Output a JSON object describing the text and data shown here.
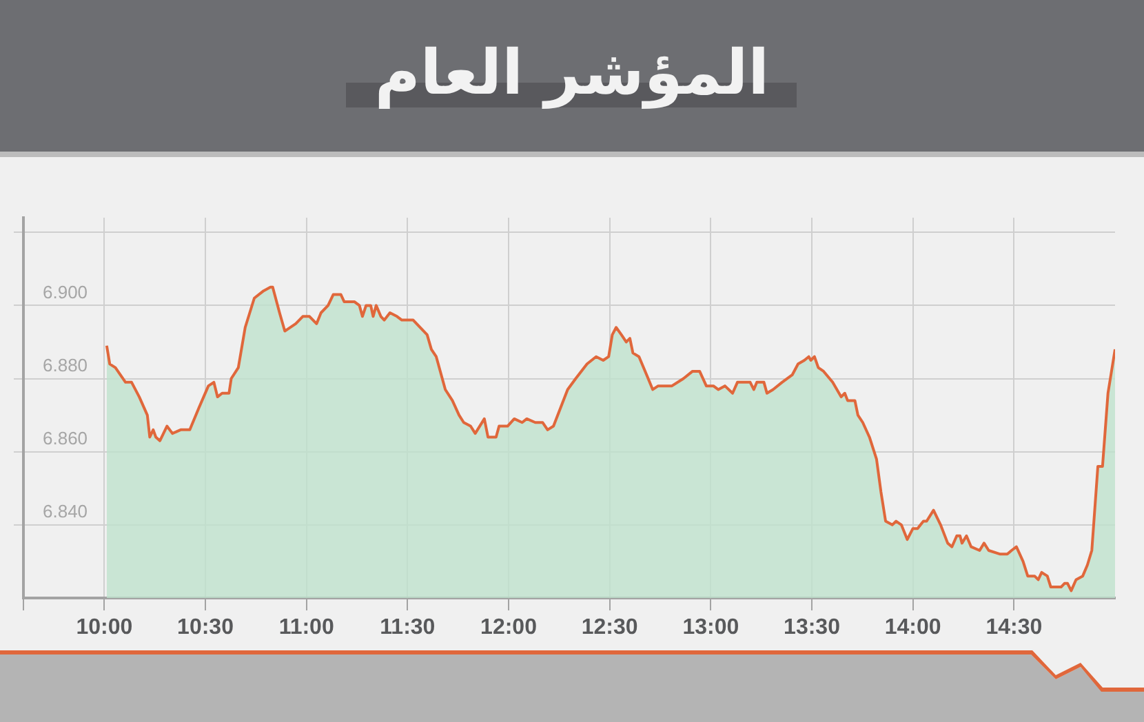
{
  "chart_data": {
    "type": "area",
    "title": "المؤشر العام",
    "xlim": [
      9.6,
      15
    ],
    "xticks": [
      {
        "value": 9.6,
        "label": null
      },
      {
        "value": 10,
        "label": "10:00"
      },
      {
        "value": 10.5,
        "label": "10:30"
      },
      {
        "value": 11,
        "label": "11:00"
      },
      {
        "value": 11.5,
        "label": "11:30"
      },
      {
        "value": 12,
        "label": "12:00"
      },
      {
        "value": 12.5,
        "label": "12:30"
      },
      {
        "value": 13,
        "label": "13:00"
      },
      {
        "value": 13.5,
        "label": "13:30"
      },
      {
        "value": 14,
        "label": "14:00"
      },
      {
        "value": 14.5,
        "label": "14:30"
      }
    ],
    "ylim": [
      6.82,
      6.924
    ],
    "yticks": [
      {
        "value": 6.84,
        "label": "6.840"
      },
      {
        "value": 6.86,
        "label": "6.860"
      },
      {
        "value": 6.88,
        "label": "6.880"
      },
      {
        "value": 6.9,
        "label": "6.900"
      },
      {
        "value": 6.92,
        "label": null
      }
    ],
    "grid": true,
    "legend": false,
    "series": [
      {
        "color": "#e0673b",
        "x": [
          10.012,
          10.027,
          10.055,
          10.105,
          10.135,
          10.173,
          10.213,
          10.225,
          10.242,
          10.255,
          10.275,
          10.31,
          10.337,
          10.378,
          10.423,
          10.468,
          10.515,
          10.542,
          10.56,
          10.583,
          10.617,
          10.628,
          10.663,
          10.697,
          10.742,
          10.788,
          10.822,
          10.833,
          10.867,
          10.893,
          10.947,
          10.982,
          11.015,
          11.05,
          11.072,
          11.107,
          11.133,
          11.17,
          11.187,
          11.238,
          11.262,
          11.277,
          11.295,
          11.318,
          11.33,
          11.345,
          11.368,
          11.385,
          11.413,
          11.448,
          11.472,
          11.528,
          11.562,
          11.597,
          11.618,
          11.642,
          11.687,
          11.722,
          11.755,
          11.778,
          11.812,
          11.835,
          11.88,
          11.898,
          11.938,
          11.953,
          11.995,
          12.028,
          12.067,
          12.09,
          12.132,
          12.168,
          12.193,
          12.222,
          12.257,
          12.292,
          12.332,
          12.388,
          12.433,
          12.468,
          12.495,
          12.513,
          12.532,
          12.558,
          12.582,
          12.6,
          12.615,
          12.645,
          12.683,
          12.713,
          12.74,
          12.808,
          12.865,
          12.91,
          12.945,
          12.978,
          13.013,
          13.037,
          13.07,
          13.108,
          13.132,
          13.195,
          13.213,
          13.228,
          13.263,
          13.278,
          13.308,
          13.353,
          13.403,
          13.432,
          13.463,
          13.485,
          13.495,
          13.513,
          13.532,
          13.558,
          13.603,
          13.645,
          13.663,
          13.677,
          13.713,
          13.728,
          13.752,
          13.785,
          13.82,
          13.842,
          13.865,
          13.898,
          13.917,
          13.943,
          13.972,
          14.0,
          14.023,
          14.052,
          14.068,
          14.102,
          14.137,
          14.172,
          14.193,
          14.217,
          14.233,
          14.243,
          14.265,
          14.288,
          14.33,
          14.352,
          14.375,
          14.432,
          14.467,
          14.488,
          14.512,
          14.545,
          14.568,
          14.602,
          14.62,
          14.637,
          14.665,
          14.682,
          14.733,
          14.75,
          14.765,
          14.783,
          14.807,
          14.84,
          14.863,
          14.885,
          14.915,
          14.938,
          14.965,
          15.0
        ],
        "values": [
          6.889,
          6.884,
          6.883,
          6.879,
          6.879,
          6.875,
          6.87,
          6.864,
          6.866,
          6.864,
          6.863,
          6.867,
          6.865,
          6.866,
          6.866,
          6.872,
          6.878,
          6.879,
          6.875,
          6.876,
          6.876,
          6.88,
          6.883,
          6.894,
          6.902,
          6.904,
          6.905,
          6.905,
          6.898,
          6.893,
          6.895,
          6.897,
          6.897,
          6.895,
          6.898,
          6.9,
          6.903,
          6.903,
          6.901,
          6.901,
          6.9,
          6.897,
          6.9,
          6.9,
          6.897,
          6.9,
          6.897,
          6.896,
          6.898,
          6.897,
          6.896,
          6.896,
          6.894,
          6.892,
          6.888,
          6.886,
          6.877,
          6.874,
          6.87,
          6.868,
          6.867,
          6.865,
          6.869,
          6.864,
          6.864,
          6.867,
          6.867,
          6.869,
          6.868,
          6.869,
          6.868,
          6.868,
          6.866,
          6.867,
          6.872,
          6.877,
          6.88,
          6.884,
          6.886,
          6.885,
          6.886,
          6.892,
          6.894,
          6.892,
          6.89,
          6.891,
          6.887,
          6.886,
          6.881,
          6.877,
          6.878,
          6.878,
          6.88,
          6.882,
          6.882,
          6.878,
          6.878,
          6.877,
          6.878,
          6.876,
          6.879,
          6.879,
          6.877,
          6.879,
          6.879,
          6.876,
          6.877,
          6.879,
          6.881,
          6.884,
          6.885,
          6.886,
          6.885,
          6.886,
          6.883,
          6.882,
          6.879,
          6.875,
          6.876,
          6.874,
          6.874,
          6.87,
          6.868,
          6.864,
          6.858,
          6.849,
          6.841,
          6.84,
          6.841,
          6.84,
          6.836,
          6.839,
          6.839,
          6.841,
          6.841,
          6.844,
          6.84,
          6.835,
          6.834,
          6.837,
          6.837,
          6.835,
          6.837,
          6.834,
          6.833,
          6.835,
          6.833,
          6.832,
          6.832,
          6.833,
          6.834,
          6.83,
          6.826,
          6.826,
          6.825,
          6.827,
          6.826,
          6.823,
          6.823,
          6.824,
          6.824,
          6.822,
          6.825,
          6.826,
          6.829,
          6.833,
          6.856,
          6.856,
          6.876,
          6.888
        ]
      }
    ]
  }
}
